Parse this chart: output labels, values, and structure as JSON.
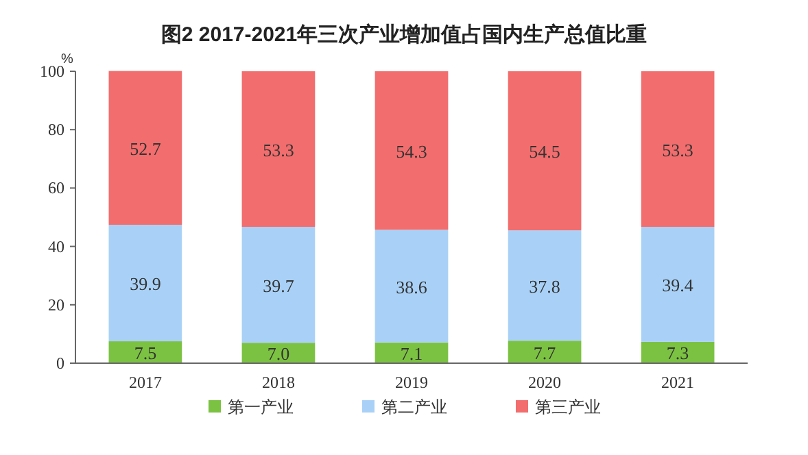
{
  "chart_data": {
    "type": "bar",
    "title": "图2 2017-2021年三次产业增加值占国内生产总值比重",
    "ylabel": "%",
    "categories": [
      "2017",
      "2018",
      "2019",
      "2020",
      "2021"
    ],
    "stacked": true,
    "ylim": [
      0,
      100
    ],
    "yticks": [
      0,
      20,
      40,
      60,
      80,
      100
    ],
    "legend": "bottom",
    "grid": false,
    "series": [
      {
        "name": "第一产业",
        "color": "#7cc242",
        "values": [
          7.5,
          7.0,
          7.1,
          7.7,
          7.3
        ],
        "value_labels": [
          "7.5",
          "7.0",
          "7.1",
          "7.7",
          "7.3"
        ]
      },
      {
        "name": "第二产业",
        "color": "#a9d1f7",
        "values": [
          39.9,
          39.7,
          38.6,
          37.8,
          39.4
        ],
        "value_labels": [
          "39.9",
          "39.7",
          "38.6",
          "37.8",
          "39.4"
        ]
      },
      {
        "name": "第三产业",
        "color": "#f26d6d",
        "values": [
          52.7,
          53.3,
          54.3,
          54.5,
          53.3
        ],
        "value_labels": [
          "52.7",
          "53.3",
          "54.3",
          "54.5",
          "53.3"
        ]
      }
    ]
  }
}
